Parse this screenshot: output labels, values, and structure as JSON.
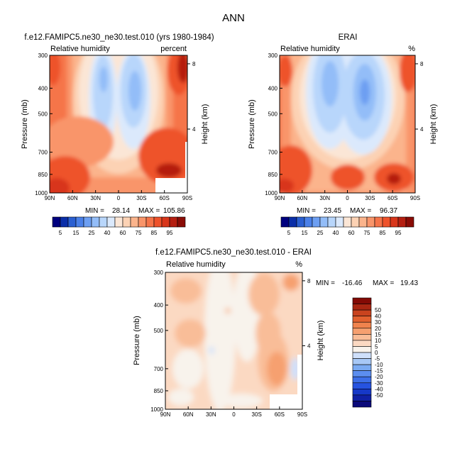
{
  "figure": {
    "main_title": "ANN",
    "bottom_title": "f.e12.FAMIPC5.ne30_ne30.test.010 - ERAI"
  },
  "colors": {
    "abs_levels": [
      "#00007f",
      "#0a2ea8",
      "#2a5fd1",
      "#4a80e8",
      "#6d9ff2",
      "#93bdf8",
      "#b8d6fb",
      "#dbe9fc",
      "#fbe6d6",
      "#fcd2b4",
      "#fbb48c",
      "#f9956a",
      "#f57449",
      "#ee522b",
      "#d8361b",
      "#b51f11",
      "#8a0c06"
    ],
    "diff_levels": [
      "#0b0a7a",
      "#1020a5",
      "#1638c8",
      "#2653e0",
      "#3d6fe8",
      "#5c8eef",
      "#7aaaf2",
      "#a7c8f6",
      "#cfe0fb",
      "#f8f3ec",
      "#fbd9c2",
      "#f9bd98",
      "#f6a070",
      "#f0834d",
      "#e2612f",
      "#c9431e",
      "#a82612",
      "#830a05"
    ]
  },
  "panels": [
    {
      "title": "f.e12.FAMIPC5.ne30_ne30.test.010 (yrs 1980-1984)",
      "left_label": "Relative humidity",
      "right_label": "percent",
      "ylabel": "Pressure (mb)",
      "ylabel2": "Height (km)",
      "min_label": "MIN =",
      "min_value": "28.14",
      "max_label": "MAX =",
      "max_value": "105.86"
    },
    {
      "title": "ERAI",
      "left_label": "Relative humidity",
      "right_label": "%",
      "ylabel": "Pressure (mb)",
      "ylabel2": "Height (km)",
      "min_label": "MIN =",
      "min_value": "23.45",
      "max_label": "MAX =",
      "max_value": "96.37"
    },
    {
      "title": "",
      "left_label": "Relative humidity",
      "right_label": "%",
      "ylabel": "Pressure (mb)",
      "ylabel2": "Height (km)",
      "min_label": "MIN =",
      "min_value": "-16.46",
      "max_label": "MAX =",
      "max_value": "19.43"
    }
  ],
  "chart_data": [
    {
      "type": "heatmap",
      "title": "f.e12.FAMIPC5.ne30_ne30.test.010 (yrs 1980-1984)",
      "xlabel": "",
      "ylabel": "Pressure (mb)",
      "ylabel_right": "Height (km)",
      "x_ticks": [
        "90N",
        "60N",
        "30N",
        "0",
        "30S",
        "60S",
        "90S"
      ],
      "y_ticks": [
        "300",
        "400",
        "500",
        "700",
        "850",
        "1000"
      ],
      "y_ticks_right": [
        "8",
        "4"
      ],
      "xlim": [
        90,
        -90
      ],
      "ylim": [
        1000,
        300
      ],
      "colorbar_levels": [
        "5",
        "15",
        "25",
        "40",
        "60",
        "75",
        "85",
        "95"
      ],
      "min": 28.14,
      "max": 105.86
    },
    {
      "type": "heatmap",
      "title": "ERAI",
      "xlabel": "",
      "ylabel": "Pressure (mb)",
      "ylabel_right": "Height (km)",
      "x_ticks": [
        "90N",
        "60N",
        "30N",
        "0",
        "30S",
        "60S",
        "90S"
      ],
      "y_ticks": [
        "300",
        "400",
        "500",
        "700",
        "850",
        "1000"
      ],
      "y_ticks_right": [
        "8",
        "4"
      ],
      "xlim": [
        90,
        -90
      ],
      "ylim": [
        1000,
        300
      ],
      "colorbar_levels": [
        "5",
        "15",
        "25",
        "40",
        "60",
        "75",
        "85",
        "95"
      ],
      "min": 23.45,
      "max": 96.37
    },
    {
      "type": "heatmap",
      "title": "f.e12.FAMIPC5.ne30_ne30.test.010 - ERAI",
      "xlabel": "",
      "ylabel": "Pressure (mb)",
      "ylabel_right": "Height (km)",
      "x_ticks": [
        "90N",
        "60N",
        "30N",
        "0",
        "30S",
        "60S",
        "90S"
      ],
      "y_ticks": [
        "300",
        "400",
        "500",
        "700",
        "850",
        "1000"
      ],
      "y_ticks_right": [
        "8",
        "4"
      ],
      "xlim": [
        90,
        -90
      ],
      "ylim": [
        1000,
        300
      ],
      "colorbar_levels": [
        "50",
        "40",
        "30",
        "20",
        "15",
        "10",
        "5",
        "0",
        "-5",
        "-10",
        "-15",
        "-20",
        "-30",
        "-40",
        "-50"
      ],
      "min": -16.46,
      "max": 19.43
    }
  ]
}
